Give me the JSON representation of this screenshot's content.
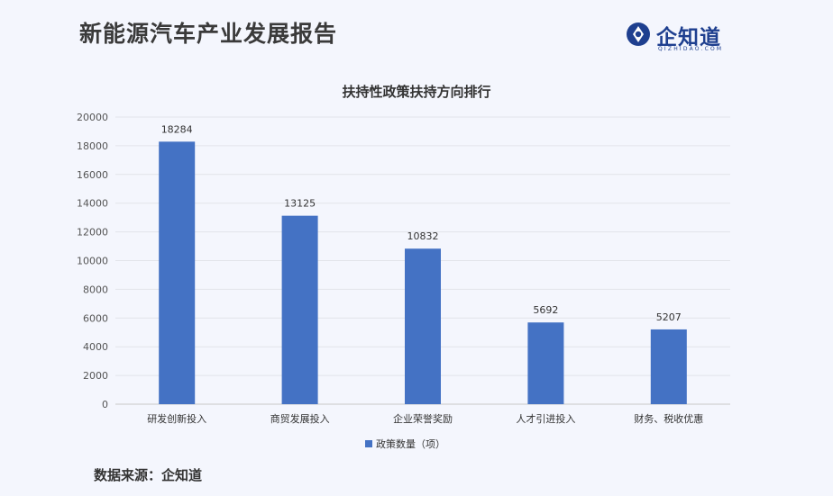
{
  "header": {
    "title": "新能源汽车产业发展报告"
  },
  "logo": {
    "name": "企知道",
    "sub": "QIZHIDAO.COM",
    "icon": "qizhidao-logo-icon",
    "color": "#1e3f8f"
  },
  "footer": {
    "source": "数据来源：企知道"
  },
  "chart_data": {
    "type": "bar",
    "title": "扶持性政策扶持方向排行",
    "categories": [
      "研发创新投入",
      "商贸发展投入",
      "企业荣誉奖励",
      "人才引进投入",
      "财务、税收优惠"
    ],
    "series": [
      {
        "name": "政策数量（项）",
        "values": [
          18284,
          13125,
          10832,
          5692,
          5207
        ],
        "color": "#4472c4"
      }
    ],
    "ylim": [
      0,
      20000
    ],
    "yticks": [
      0,
      2000,
      4000,
      6000,
      8000,
      10000,
      12000,
      14000,
      16000,
      18000,
      20000
    ],
    "grid": true,
    "legend": "bottom",
    "data_labels": true
  }
}
